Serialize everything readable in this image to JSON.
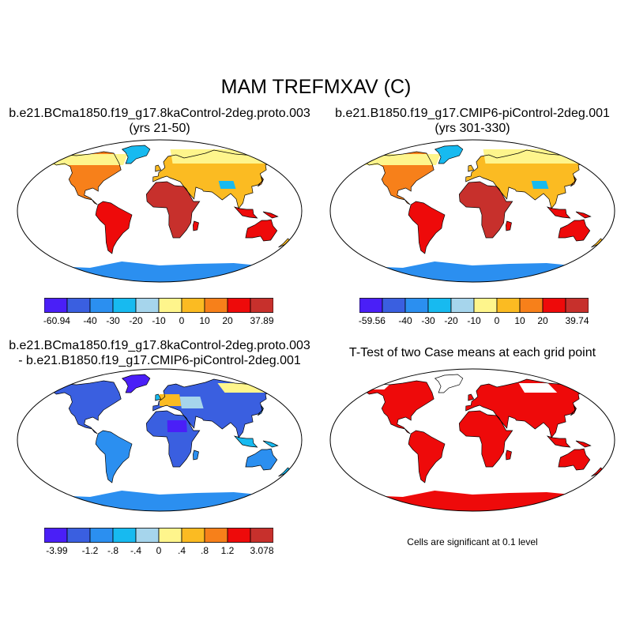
{
  "figure": {
    "title": "MAM TREFMXAV (C)"
  },
  "panels": [
    {
      "id": "p1",
      "title_line1": "b.e21.BCma1850.f19_g17.8kaControl-2deg.proto.003",
      "title_line2": "(yrs 21-50)",
      "field": "temperature",
      "colorbar": {
        "colors": [
          "#4a1ff7",
          "#3a5fe0",
          "#2b8ff0",
          "#17baf0",
          "#a6d5ec",
          "#fef58c",
          "#fbbb22",
          "#f7801a",
          "#ee0a0a",
          "#c7302c"
        ],
        "labels": [
          "-60.94",
          "-40",
          "-30",
          "-20",
          "-10",
          "0",
          "10",
          "20",
          "37.89"
        ]
      }
    },
    {
      "id": "p2",
      "title_line1": "b.e21.B1850.f19_g17.CMIP6-piControl-2deg.001",
      "title_line2": "(yrs 301-330)",
      "field": "temperature",
      "colorbar": {
        "colors": [
          "#4a1ff7",
          "#3a5fe0",
          "#2b8ff0",
          "#17baf0",
          "#a6d5ec",
          "#fef58c",
          "#fbbb22",
          "#f7801a",
          "#ee0a0a",
          "#c7302c"
        ],
        "labels": [
          "-59.56",
          "-40",
          "-30",
          "-20",
          "-10",
          "0",
          "10",
          "20",
          "39.74"
        ]
      }
    },
    {
      "id": "p3",
      "title_line1": "b.e21.BCma1850.f19_g17.8kaControl-2deg.proto.003",
      "title_line2": "- b.e21.B1850.f19_g17.CMIP6-piControl-2deg.001",
      "field": "difference",
      "colorbar": {
        "colors": [
          "#4a1ff7",
          "#3a5fe0",
          "#2b8ff0",
          "#17baf0",
          "#a6d5ec",
          "#fef58c",
          "#fbbb22",
          "#f7801a",
          "#ee0a0a",
          "#c7302c"
        ],
        "labels": [
          "-3.99",
          "-1.2",
          "-.8",
          "-.4",
          "0",
          ".4",
          ".8",
          "1.2",
          "3.078"
        ]
      }
    },
    {
      "id": "p4",
      "title_line1": "T-Test of two Case means at each grid point",
      "note": "Cells are significant at 0.1 level",
      "field": "significance",
      "significant_color": "#ee0a0a"
    }
  ]
}
